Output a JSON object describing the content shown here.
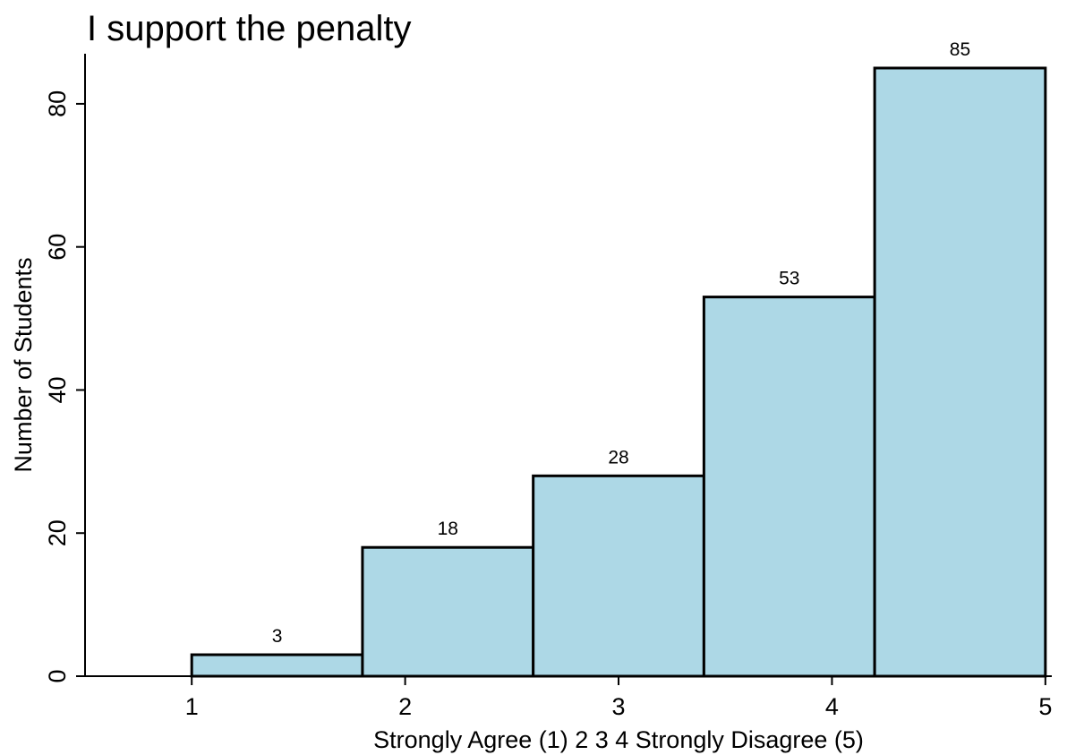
{
  "chart_data": {
    "type": "bar",
    "title": "I support the penalty",
    "xlabel": "Strongly Agree (1) 2 3 4 Strongly Disagree (5)",
    "ylabel": "Number of Students",
    "bins": [
      {
        "x0": 1.0,
        "x1": 1.8,
        "value": 3
      },
      {
        "x0": 1.8,
        "x1": 2.6,
        "value": 18
      },
      {
        "x0": 2.6,
        "x1": 3.4,
        "value": 28
      },
      {
        "x0": 3.4,
        "x1": 4.2,
        "value": 53
      },
      {
        "x0": 4.2,
        "x1": 5.0,
        "value": 85
      }
    ],
    "xticks": [
      1,
      2,
      3,
      4,
      5
    ],
    "yticks": [
      0,
      20,
      40,
      60,
      80
    ],
    "xlim": [
      0.5,
      5.03
    ],
    "ylim": [
      0,
      87
    ],
    "bar_color": "#add8e6",
    "grid": false,
    "legend": "none"
  }
}
